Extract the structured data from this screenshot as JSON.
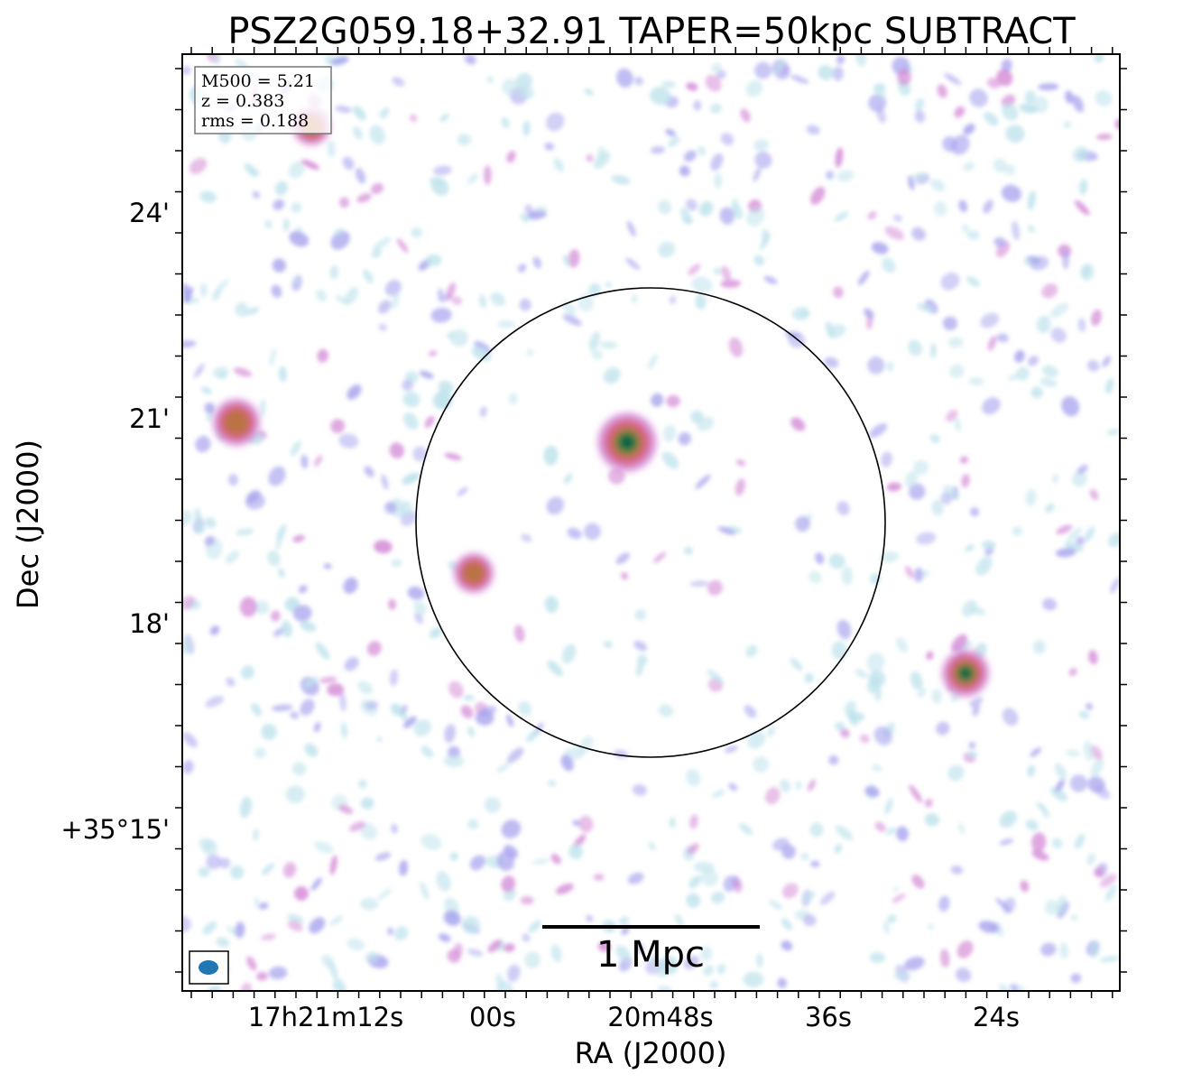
{
  "title": "PSZ2G059.18+32.91 TAPER=50kpc SUBTRACT",
  "info": {
    "m500": "M500 = 5.21",
    "z": "z = 0.383",
    "rms": "rms = 0.188"
  },
  "axes": {
    "xlabel": "RA (J2000)",
    "ylabel": "Dec (J2000)",
    "xticks": [
      "17h21m12s",
      "00s",
      "20m48s",
      "36s",
      "24s"
    ],
    "yticks": [
      "24'",
      "21'",
      "18'",
      "+35°15'"
    ]
  },
  "scale_bar": {
    "label": "1 Mpc"
  },
  "beam": {
    "color": "#1f77b4"
  },
  "colors": {
    "noise_low": "#bfe3ec",
    "noise_mid": "#a9a6ee",
    "noise_high": "#d48ad6",
    "source_edge": "#d9607a",
    "source_mid": "#b8743f",
    "source_core": "#2f8a3c",
    "source_peak": "#0b5a4a"
  }
}
